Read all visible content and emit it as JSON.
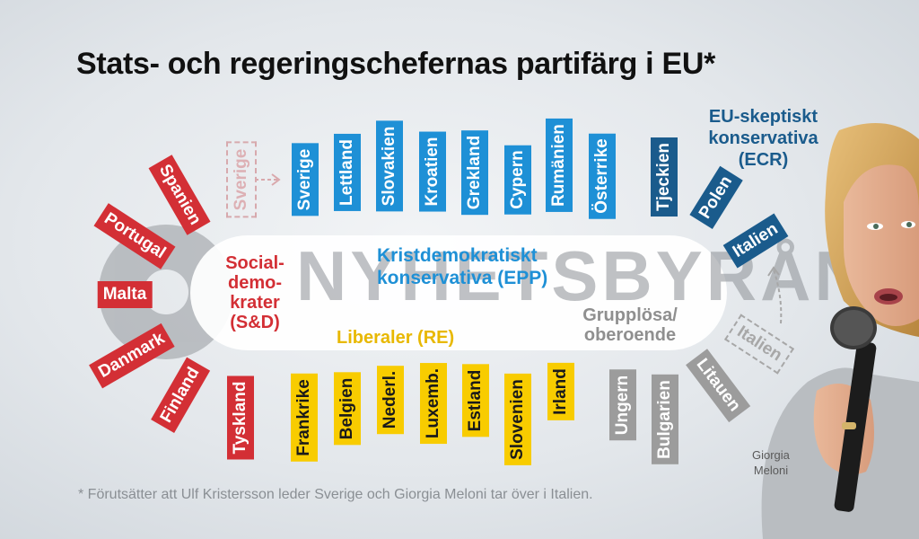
{
  "title": "Stats- och regeringschefernas partifärg i EU*",
  "watermark": "NYHETSBYRÅN",
  "footnote": "* Förutsätter att Ulf Kristersson leder Sverige och Giorgia Meloni tar över i Italien.",
  "photo_caption": {
    "line1": "Giorgia",
    "line2": "Meloni"
  },
  "groups": {
    "epp": {
      "line1": "Kristdemokratiskt",
      "line2": "konservativa (EPP)",
      "color": "#1e90d6"
    },
    "sd": {
      "line1": "Social-",
      "line2": "demo-",
      "line3": "krater",
      "line4": "(S&D)",
      "color": "#d32f35"
    },
    "re": {
      "line1": "Liberaler (RE)",
      "color": "#f8cc00"
    },
    "ni": {
      "line1": "Grupplösa/",
      "line2": "oberoende",
      "color": "#9c9c9c"
    },
    "ecr": {
      "line1": "EU-skeptiskt",
      "line2": "konservativa",
      "line3": "(ECR)",
      "color": "#1a5b8c"
    }
  },
  "epp_countries": [
    "Sverige",
    "Lettland",
    "Slovakien",
    "Kroatien",
    "Grekland",
    "Cypern",
    "Rumänien",
    "Österrike"
  ],
  "ecr_countries": [
    "Tjeckien",
    "Polen",
    "Italien"
  ],
  "sd_countries": [
    "Spanien",
    "Portugal",
    "Malta",
    "Danmark",
    "Finland",
    "Tyskland"
  ],
  "re_countries": [
    "Frankrike",
    "Belgien",
    "Nederl.",
    "Luxemb.",
    "Estland",
    "Slovenien",
    "Irland"
  ],
  "ni_countries": [
    "Ungern",
    "Bulgarien",
    "Litauen"
  ],
  "former": {
    "sverige": "Sverige",
    "italien": "Italien"
  }
}
